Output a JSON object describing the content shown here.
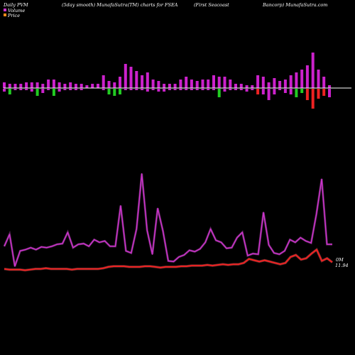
{
  "header": {
    "col1": "Daily PVM",
    "col2": "(5day smooth) MunafaSutra(TM) charts for FSEA",
    "col3": "(First Seacoast",
    "col4": "Bancorp) MunafaSutra.com"
  },
  "legend": {
    "volume_label": "Volume",
    "price_label": "Price",
    "volume_color": "#cc33cc",
    "price_color": "#ff8c1a"
  },
  "end_labels": {
    "volume_end": "0M",
    "price_end": "11.94"
  },
  "colors": {
    "background": "#000000",
    "volume_bar": "#cc22cc",
    "volume_up": "#22cc22",
    "volume_down": "#ee2222",
    "volume_line": "#cc33cc",
    "volume_line_glow": "#ff66ff",
    "price_line": "#ee2222",
    "price_line_glow": "#ff7777",
    "axis_line": "#ffffff"
  },
  "chart_data": [
    {
      "type": "bar",
      "title": "",
      "series": [
        {
          "name": "Volume",
          "values": [
            4,
            3,
            3,
            3,
            4,
            4,
            4,
            3,
            6,
            6,
            4,
            3,
            4,
            3,
            3,
            2,
            3,
            3,
            9,
            5,
            4,
            8,
            17,
            15,
            12,
            9,
            11,
            6,
            5,
            3,
            3,
            3,
            6,
            8,
            6,
            5,
            6,
            6,
            9,
            8,
            8,
            6,
            3,
            3,
            2,
            2,
            9,
            8,
            4,
            7,
            5,
            6,
            9,
            11,
            13,
            16,
            25,
            13,
            8,
            2
          ]
        },
        {
          "name": "",
          "values": [
            -2,
            -4,
            -1,
            -1,
            -1,
            -2,
            -5,
            -3,
            -1,
            -5,
            -2,
            -1,
            -1,
            -1,
            -1,
            0,
            0,
            0,
            -1,
            -4,
            -5,
            -4,
            -1,
            -1,
            -1,
            -1,
            -2,
            -1,
            -2,
            -2,
            -1,
            -1,
            -1,
            -1,
            -1,
            -1,
            -1,
            -1,
            -1,
            -6,
            -2,
            -1,
            -1,
            -1,
            -2,
            -1,
            -4,
            -4,
            -8,
            -4,
            -1,
            -3,
            -4,
            -6,
            -3,
            -8,
            -14,
            -7,
            -5,
            -6
          ]
        }
      ]
    },
    {
      "type": "line",
      "series": [
        {
          "name": "Volume",
          "values": [
            0.46,
            0.64,
            0.16,
            0.39,
            0.41,
            0.44,
            0.41,
            0.45,
            0.44,
            0.46,
            0.49,
            0.5,
            0.67,
            0.44,
            0.49,
            0.5,
            0.46,
            0.56,
            0.52,
            0.54,
            0.46,
            0.46,
            1.07,
            0.39,
            0.36,
            0.72,
            1.55,
            0.7,
            0.34,
            1.03,
            0.69,
            0.24,
            0.23,
            0.3,
            0.33,
            0.4,
            0.38,
            0.42,
            0.52,
            0.72,
            0.55,
            0.52,
            0.43,
            0.44,
            0.59,
            0.67,
            0.32,
            0.35,
            0.34,
            0.97,
            0.48,
            0.36,
            0.34,
            0.39,
            0.56,
            0.52,
            0.59,
            0.54,
            0.51,
            0.94,
            1.47,
            0.49,
            0.49
          ]
        },
        {
          "name": "Price",
          "values": [
            0.12,
            0.11,
            0.11,
            0.11,
            0.1,
            0.11,
            0.12,
            0.12,
            0.13,
            0.12,
            0.12,
            0.12,
            0.12,
            0.11,
            0.12,
            0.12,
            0.12,
            0.12,
            0.12,
            0.13,
            0.15,
            0.16,
            0.16,
            0.16,
            0.15,
            0.15,
            0.15,
            0.16,
            0.16,
            0.15,
            0.14,
            0.15,
            0.15,
            0.15,
            0.16,
            0.16,
            0.17,
            0.17,
            0.17,
            0.18,
            0.17,
            0.18,
            0.19,
            0.18,
            0.19,
            0.19,
            0.21,
            0.27,
            0.25,
            0.23,
            0.25,
            0.23,
            0.21,
            0.19,
            0.21,
            0.3,
            0.33,
            0.26,
            0.28,
            0.35,
            0.41,
            0.24,
            0.28,
            0.22
          ]
        }
      ]
    }
  ]
}
